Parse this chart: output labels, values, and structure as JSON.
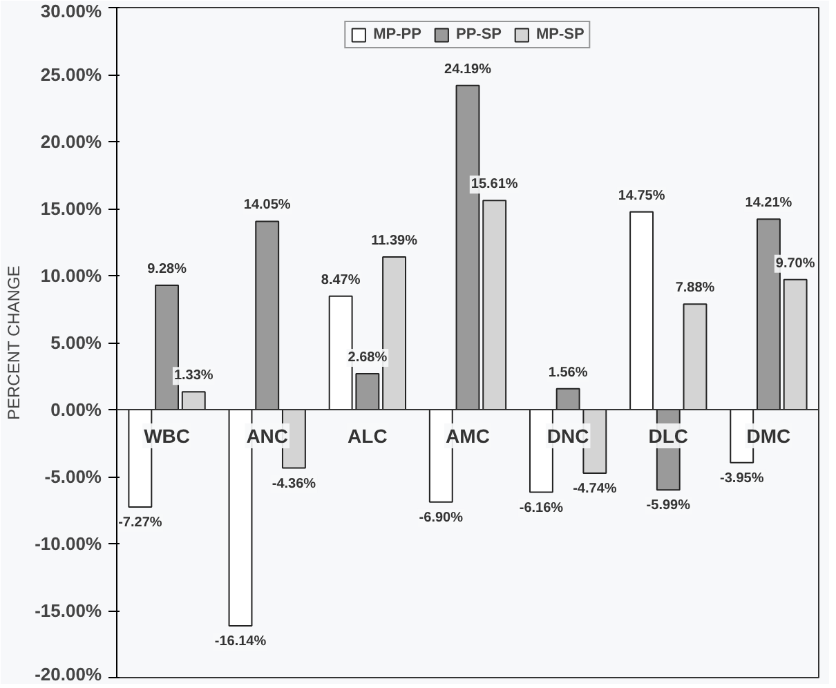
{
  "chart_data": {
    "type": "bar",
    "ylabel": "PERCENT CHANGE",
    "categories": [
      "WBC",
      "ANC",
      "ALC",
      "AMC",
      "DNC",
      "DLC",
      "DMC"
    ],
    "series": [
      {
        "name": "MP-PP",
        "color": "#ffffff",
        "values": [
          -7.27,
          -16.14,
          8.47,
          -6.9,
          -6.16,
          14.75,
          -3.95
        ],
        "value_labels": [
          "-7.27%",
          "-16.14%",
          "8.47%",
          "-6.90%",
          "-6.16%",
          "14.75%",
          "-3.95%"
        ]
      },
      {
        "name": "PP-SP",
        "color": "#9a9a9a",
        "values": [
          9.28,
          14.05,
          2.68,
          24.19,
          1.56,
          -5.99,
          14.21
        ],
        "value_labels": [
          "9.28%",
          "14.05%",
          "2.68%",
          "24.19%",
          "1.56%",
          "-5.99%",
          "14.21%"
        ]
      },
      {
        "name": "MP-SP",
        "color": "#d4d4d4",
        "values": [
          1.33,
          -4.36,
          11.39,
          15.61,
          -4.74,
          7.88,
          9.7
        ],
        "value_labels": [
          "1.33%",
          "-4.36%",
          "11.39%",
          "15.61%",
          "-4.74%",
          "7.88%",
          "9.70%"
        ]
      }
    ],
    "ylim": [
      -20,
      30
    ],
    "yticks": [
      {
        "value": -20,
        "label": "-20.00%"
      },
      {
        "value": -15,
        "label": "-15.00%"
      },
      {
        "value": -10,
        "label": "-10.00%"
      },
      {
        "value": -5,
        "label": "-5.00%"
      },
      {
        "value": 0,
        "label": "0.00%"
      },
      {
        "value": 5,
        "label": "5.00%"
      },
      {
        "value": 10,
        "label": "10.00%"
      },
      {
        "value": 15,
        "label": "15.00%"
      },
      {
        "value": 20,
        "label": "20.00%"
      },
      {
        "value": 25,
        "label": "25.00%"
      },
      {
        "value": 30,
        "label": "30.00%"
      }
    ],
    "legend": "top",
    "grid": false
  }
}
